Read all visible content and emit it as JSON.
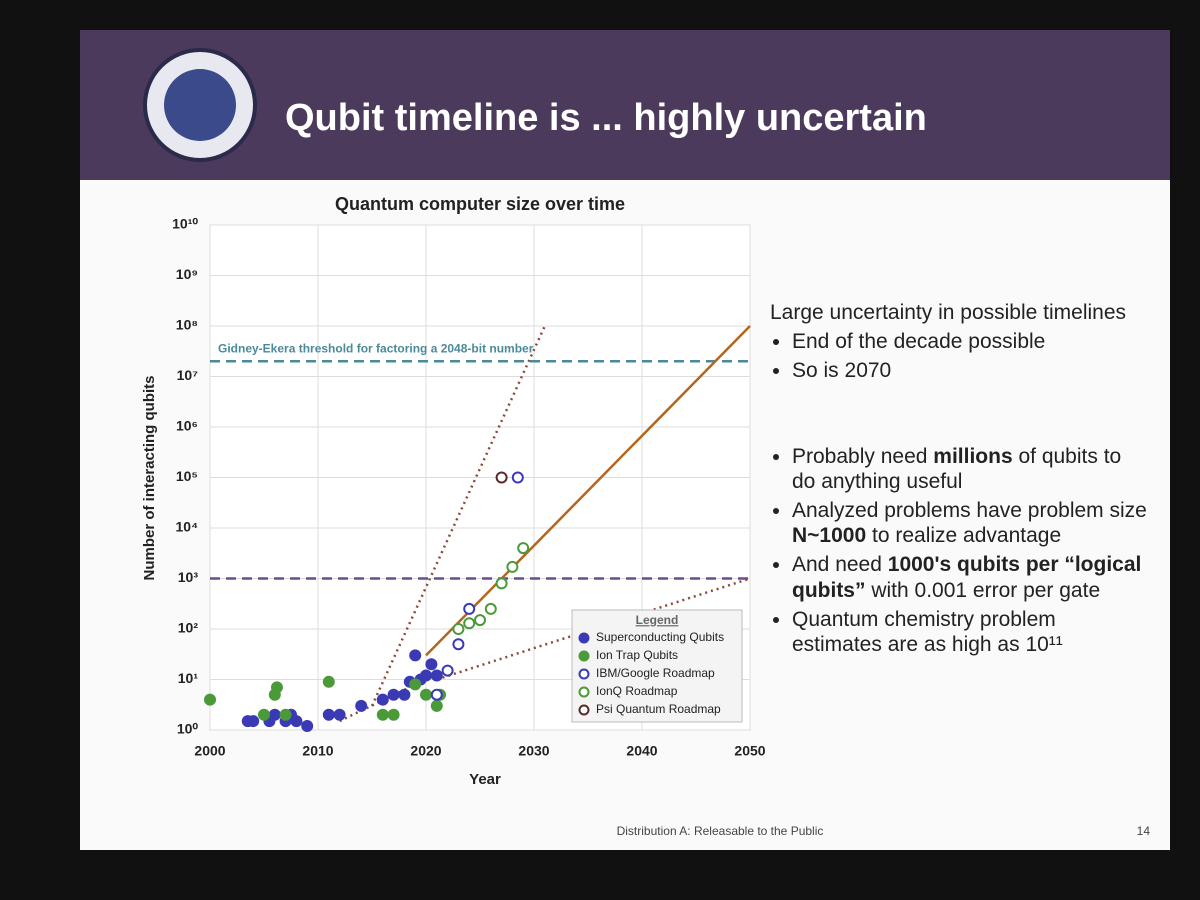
{
  "slide": {
    "title": "Qubit timeline is ... highly uncertain",
    "footer": "Distribution A: Releasable to the Public",
    "page_number": "14",
    "heading": "Large uncertainty in possible timelines",
    "sub_bullets": [
      "End of the decade possible",
      "So is 2070"
    ],
    "bullets": [
      [
        {
          "text": "Probably need "
        },
        {
          "text": "millions",
          "bold": true
        },
        {
          "text": " of qubits to do anything useful"
        }
      ],
      [
        {
          "text": "Analyzed problems have problem size "
        },
        {
          "text": "N~1000",
          "bold": true
        },
        {
          "text": " to realize advantage"
        }
      ],
      [
        {
          "text": "And need "
        },
        {
          "text": "1000's qubits per “logical qubits”",
          "bold": true
        },
        {
          "text": " with 0.001 error per gate"
        }
      ],
      [
        {
          "text": "Quantum chemistry problem estimates are as high as 10¹¹"
        }
      ]
    ]
  },
  "chart_data": {
    "type": "scatter",
    "title": "Quantum computer size over time",
    "x_label": "Year",
    "y_label": "Number of interacting qubits",
    "log_scale_y": true,
    "grid": true,
    "legend_title": "Legend",
    "legend_position": "lower right",
    "xlim": [
      2000,
      2050
    ],
    "xticks": [
      2000,
      2010,
      2020,
      2030,
      2040,
      2050
    ],
    "ylim": [
      1,
      10000000000
    ],
    "yticks": [
      {
        "value": 1,
        "label": "10⁰"
      },
      {
        "value": 10,
        "label": "10¹"
      },
      {
        "value": 100,
        "label": "10²"
      },
      {
        "value": 1000,
        "label": "10³"
      },
      {
        "value": 10000,
        "label": "10⁴"
      },
      {
        "value": 100000,
        "label": "10⁵"
      },
      {
        "value": 1000000,
        "label": "10⁶"
      },
      {
        "value": 10000000,
        "label": "10⁷"
      },
      {
        "value": 100000000,
        "label": "10⁸"
      },
      {
        "value": 1000000000,
        "label": "10⁹"
      },
      {
        "value": 10000000000,
        "label": "10¹⁰"
      }
    ],
    "series": [
      {
        "name": "Superconducting Qubits",
        "color": "#3a3ab5",
        "marker": "filled",
        "x": [
          2003.5,
          2004,
          2005.5,
          2006,
          2007,
          2007.5,
          2008,
          2009,
          2011,
          2012,
          2014,
          2016,
          2017,
          2018,
          2018.5,
          2019,
          2019.5,
          2020,
          2020.5,
          2021
        ],
        "values": [
          1.5,
          1.5,
          1.5,
          2,
          1.5,
          2,
          1.5,
          1.2,
          2,
          2,
          3,
          4,
          5,
          5,
          9,
          30,
          10,
          12,
          20,
          12
        ]
      },
      {
        "name": "Ion Trap Qubits",
        "color": "#4a9a3a",
        "marker": "filled",
        "x": [
          2000,
          2005,
          2006,
          2006.2,
          2007,
          2011,
          2016,
          2017,
          2019,
          2020,
          2021,
          2021.3
        ],
        "values": [
          4,
          2,
          5,
          7,
          2,
          9,
          2,
          2,
          8,
          5,
          3,
          5
        ]
      },
      {
        "name": "IBM/Google Roadmap",
        "color": "#3a3ab5",
        "marker": "open",
        "x": [
          2021,
          2022,
          2023,
          2024,
          2028.5
        ],
        "values": [
          5,
          15,
          50,
          250,
          100000
        ]
      },
      {
        "name": "IonQ Roadmap",
        "color": "#4a9a3a",
        "marker": "open",
        "x": [
          2023,
          2024,
          2025,
          2026,
          2027,
          2028,
          2029
        ],
        "values": [
          100,
          130,
          150,
          250,
          800,
          1700,
          4000
        ]
      },
      {
        "name": "Psi Quantum Roadmap",
        "color": "#5a2a2a",
        "marker": "open",
        "x": [
          2027
        ],
        "values": [
          100000
        ]
      }
    ],
    "reference_lines": [
      {
        "label": "Gidney-Ekera threshold for factoring a 2048-bit number",
        "values": [
          20000000,
          20000000
        ],
        "x": [
          2000,
          2050
        ],
        "color": "#4a8a9a"
      },
      {
        "values": [
          1000,
          1000
        ],
        "x": [
          2000,
          2050
        ],
        "color": "#6a4c93"
      }
    ],
    "trend_lines": [
      {
        "x": [
          2020,
          2050
        ],
        "values": [
          30,
          100000000
        ],
        "color": "#b5651d",
        "style": "solid"
      },
      {
        "x": [
          2015,
          2031
        ],
        "values": [
          3,
          100000000
        ],
        "color": "#8a4a3a",
        "style": "dotted"
      },
      {
        "x": [
          2021,
          2050
        ],
        "values": [
          10,
          1000
        ],
        "color": "#8a4a3a",
        "style": "dotted"
      },
      {
        "x": [
          2012,
          2020
        ],
        "values": [
          1.5,
          10
        ],
        "color": "#8a4a3a",
        "style": "dotted"
      }
    ]
  }
}
